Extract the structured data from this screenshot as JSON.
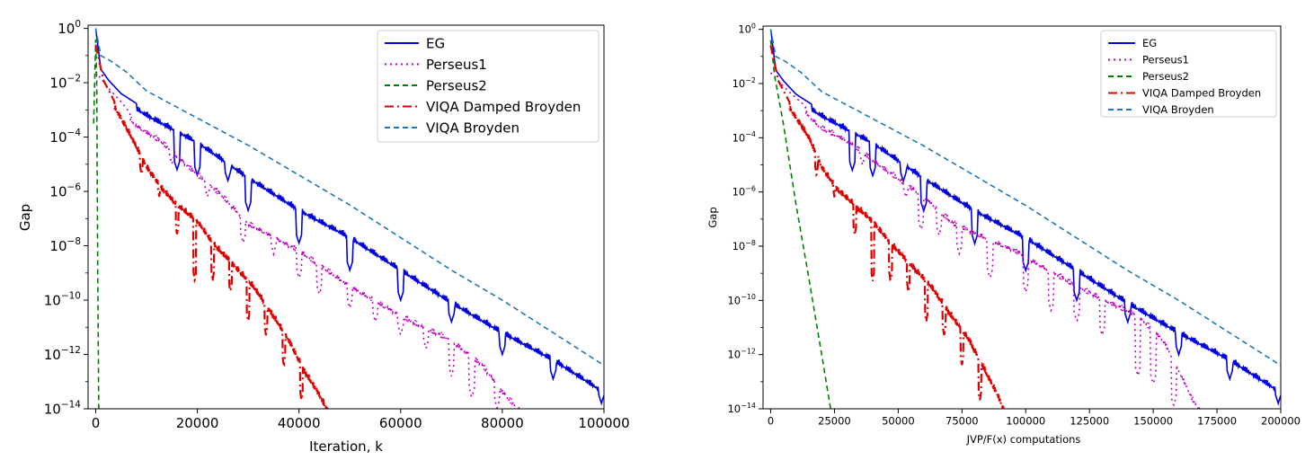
{
  "chart_data": [
    {
      "type": "line",
      "id": "left",
      "xlabel": "Iteration, k",
      "ylabel": "Gap",
      "xlim": [
        -1500,
        100000
      ],
      "ylim_log10": [
        -14,
        0.12
      ],
      "yscale": "log",
      "grid": false,
      "legend_position": "top-right",
      "x_ticks": [
        {
          "value": 0,
          "label": "0"
        },
        {
          "value": 20000,
          "label": "20000"
        },
        {
          "value": 40000,
          "label": "40000"
        },
        {
          "value": 60000,
          "label": "60000"
        },
        {
          "value": 80000,
          "label": "80000"
        },
        {
          "value": 100000,
          "label": "100000"
        }
      ],
      "y_ticks": [
        {
          "exp": 0,
          "base": "10",
          "sup": "0"
        },
        {
          "exp": -2,
          "base": "10",
          "sup": "−2"
        },
        {
          "exp": -4,
          "base": "10",
          "sup": "−4"
        },
        {
          "exp": -6,
          "base": "10",
          "sup": "−6"
        },
        {
          "exp": -8,
          "base": "10",
          "sup": "−8"
        },
        {
          "exp": -10,
          "base": "10",
          "sup": "−10"
        },
        {
          "exp": -12,
          "base": "10",
          "sup": "−12"
        },
        {
          "exp": -14,
          "base": "10",
          "sup": "−14"
        }
      ],
      "series": [
        {
          "name": "EG",
          "color": "#0000dd",
          "dash": "solid",
          "points": [
            [
              0,
              0.0
            ],
            [
              1000,
              -1.5
            ],
            [
              2500,
              -1.9
            ],
            [
              5000,
              -2.4
            ],
            [
              10000,
              -3.0
            ],
            [
              20000,
              -4.0
            ],
            [
              30000,
              -5.3
            ],
            [
              40000,
              -6.5
            ],
            [
              50000,
              -7.5
            ],
            [
              60000,
              -8.7
            ],
            [
              70000,
              -9.9
            ],
            [
              80000,
              -11.0
            ],
            [
              90000,
              -12.0
            ],
            [
              100000,
              -13.2
            ]
          ],
          "spikes": [
            [
              16000,
              -5.2
            ],
            [
              20000,
              -5.4
            ],
            [
              26000,
              -5.6
            ],
            [
              30000,
              -6.7
            ],
            [
              40000,
              -7.9
            ],
            [
              50000,
              -8.9
            ],
            [
              60000,
              -10.0
            ],
            [
              70000,
              -10.8
            ],
            [
              80000,
              -12.0
            ],
            [
              90000,
              -12.9
            ],
            [
              99500,
              -13.8
            ]
          ]
        },
        {
          "name": "Perseus1",
          "color": "#bf00bf",
          "dash": "dotted",
          "points": [
            [
              0,
              -1.6
            ],
            [
              2500,
              -2.2
            ],
            [
              5000,
              -2.7
            ],
            [
              8000,
              -3.4
            ],
            [
              13000,
              -4.0
            ],
            [
              20000,
              -5.2
            ],
            [
              25000,
              -6.0
            ],
            [
              30000,
              -7.0
            ],
            [
              40000,
              -8.0
            ],
            [
              50000,
              -9.3
            ],
            [
              60000,
              -10.4
            ],
            [
              70000,
              -11.3
            ],
            [
              76000,
              -12.2
            ],
            [
              80000,
              -13.2
            ],
            [
              84000,
              -14.0
            ]
          ],
          "spikes": [
            [
              15000,
              -5.0
            ],
            [
              22000,
              -6.2
            ],
            [
              29000,
              -7.9
            ],
            [
              35000,
              -8.3
            ],
            [
              40000,
              -9.2
            ],
            [
              44000,
              -9.8
            ],
            [
              50000,
              -10.3
            ],
            [
              55000,
              -10.8
            ],
            [
              60000,
              -11.3
            ],
            [
              65000,
              -11.8
            ],
            [
              70000,
              -12.8
            ],
            [
              74000,
              -13.6
            ],
            [
              79000,
              -14.0
            ]
          ]
        },
        {
          "name": "Perseus2",
          "color": "#008000",
          "dash": "dashed",
          "points": [
            [
              -400,
              -3.5
            ],
            [
              0,
              -0.4
            ],
            [
              200,
              -2.0
            ],
            [
              400,
              -9.0
            ],
            [
              600,
              -14.0
            ]
          ],
          "spikes": []
        },
        {
          "name": "VIQA Damped Broyden",
          "color": "#dd0000",
          "dash": "dashdot",
          "points": [
            [
              0,
              -0.6
            ],
            [
              1500,
              -1.9
            ],
            [
              4000,
              -2.8
            ],
            [
              7000,
              -3.8
            ],
            [
              10000,
              -4.9
            ],
            [
              13000,
              -5.7
            ],
            [
              16000,
              -6.3
            ],
            [
              20000,
              -6.9
            ],
            [
              23000,
              -7.7
            ],
            [
              27000,
              -8.5
            ],
            [
              31000,
              -9.3
            ],
            [
              35000,
              -10.4
            ],
            [
              38000,
              -11.3
            ],
            [
              41000,
              -12.4
            ],
            [
              44000,
              -13.3
            ],
            [
              46000,
              -14.0
            ]
          ],
          "spikes": [
            [
              9000,
              -5.4
            ],
            [
              12500,
              -6.2
            ],
            [
              16000,
              -7.6
            ],
            [
              19500,
              -9.3
            ],
            [
              23000,
              -9.3
            ],
            [
              26500,
              -9.7
            ],
            [
              30000,
              -10.8
            ],
            [
              33500,
              -11.3
            ],
            [
              37000,
              -12.4
            ],
            [
              40500,
              -13.7
            ]
          ]
        },
        {
          "name": "VIQA Broyden",
          "color": "#1f77b4",
          "dash": "dashed",
          "points": [
            [
              0,
              0.0
            ],
            [
              1000,
              -1.0
            ],
            [
              3000,
              -1.2
            ],
            [
              6000,
              -1.6
            ],
            [
              10000,
              -2.3
            ],
            [
              20000,
              -3.3
            ],
            [
              30000,
              -4.3
            ],
            [
              40000,
              -5.4
            ],
            [
              50000,
              -6.5
            ],
            [
              60000,
              -7.7
            ],
            [
              70000,
              -8.9
            ],
            [
              80000,
              -10.0
            ],
            [
              90000,
              -11.2
            ],
            [
              100000,
              -12.4
            ]
          ],
          "spikes": []
        }
      ]
    },
    {
      "type": "line",
      "id": "right",
      "xlabel": "JVP/F(x) computations",
      "ylabel": "Gap",
      "xlim": [
        -3000,
        200000
      ],
      "ylim_log10": [
        -14,
        0.12
      ],
      "yscale": "log",
      "grid": false,
      "legend_position": "top-right",
      "x_ticks": [
        {
          "value": 0,
          "label": "0"
        },
        {
          "value": 25000,
          "label": "25000"
        },
        {
          "value": 50000,
          "label": "50000"
        },
        {
          "value": 75000,
          "label": "75000"
        },
        {
          "value": 100000,
          "label": "100000"
        },
        {
          "value": 125000,
          "label": "125000"
        },
        {
          "value": 150000,
          "label": "150000"
        },
        {
          "value": 175000,
          "label": "175000"
        },
        {
          "value": 200000,
          "label": "200000"
        }
      ],
      "y_ticks": [
        {
          "exp": 0,
          "base": "10",
          "sup": "0"
        },
        {
          "exp": -2,
          "base": "10",
          "sup": "−2"
        },
        {
          "exp": -4,
          "base": "10",
          "sup": "−4"
        },
        {
          "exp": -6,
          "base": "10",
          "sup": "−6"
        },
        {
          "exp": -8,
          "base": "10",
          "sup": "−8"
        },
        {
          "exp": -10,
          "base": "10",
          "sup": "−10"
        },
        {
          "exp": -12,
          "base": "10",
          "sup": "−12"
        },
        {
          "exp": -14,
          "base": "10",
          "sup": "−14"
        }
      ],
      "series": [
        {
          "name": "EG",
          "color": "#0000dd",
          "dash": "solid",
          "points": [
            [
              0,
              0.0
            ],
            [
              2000,
              -1.5
            ],
            [
              5000,
              -1.9
            ],
            [
              10000,
              -2.4
            ],
            [
              20000,
              -3.0
            ],
            [
              40000,
              -4.0
            ],
            [
              60000,
              -5.3
            ],
            [
              80000,
              -6.5
            ],
            [
              100000,
              -7.5
            ],
            [
              120000,
              -8.7
            ],
            [
              140000,
              -9.9
            ],
            [
              160000,
              -11.0
            ],
            [
              180000,
              -12.0
            ],
            [
              200000,
              -13.2
            ]
          ],
          "spikes": [
            [
              32000,
              -5.2
            ],
            [
              40000,
              -5.4
            ],
            [
              52000,
              -5.6
            ],
            [
              60000,
              -6.7
            ],
            [
              80000,
              -7.9
            ],
            [
              100000,
              -8.9
            ],
            [
              120000,
              -10.0
            ],
            [
              140000,
              -10.8
            ],
            [
              160000,
              -12.0
            ],
            [
              180000,
              -12.9
            ],
            [
              199000,
              -13.8
            ]
          ]
        },
        {
          "name": "Perseus1",
          "color": "#bf00bf",
          "dash": "dotted",
          "points": [
            [
              0,
              -1.6
            ],
            [
              6000,
              -2.2
            ],
            [
              12000,
              -2.7
            ],
            [
              19000,
              -3.4
            ],
            [
              31000,
              -4.0
            ],
            [
              48000,
              -5.2
            ],
            [
              60000,
              -6.0
            ],
            [
              72000,
              -7.0
            ],
            [
              96000,
              -8.0
            ],
            [
              120000,
              -9.3
            ],
            [
              144000,
              -10.4
            ],
            [
              154000,
              -11.3
            ],
            [
              160000,
              -12.4
            ],
            [
              166000,
              -13.6
            ],
            [
              170000,
              -14.0
            ]
          ],
          "spikes": [
            [
              36000,
              -5.0
            ],
            [
              53000,
              -6.2
            ],
            [
              59000,
              -7.4
            ],
            [
              66000,
              -7.6
            ],
            [
              74000,
              -8.3
            ],
            [
              86000,
              -9.2
            ],
            [
              100000,
              -9.7
            ],
            [
              110000,
              -10.4
            ],
            [
              120000,
              -10.8
            ],
            [
              130000,
              -11.3
            ],
            [
              144000,
              -12.8
            ],
            [
              150000,
              -13.1
            ],
            [
              158000,
              -13.9
            ]
          ]
        },
        {
          "name": "Perseus2",
          "color": "#008000",
          "dash": "dashed",
          "points": [
            [
              0,
              -0.4
            ],
            [
              1500,
              -1.7
            ],
            [
              5000,
              -3.5
            ],
            [
              10000,
              -6.5
            ],
            [
              15000,
              -9.2
            ],
            [
              20000,
              -12.0
            ],
            [
              23500,
              -14.0
            ]
          ],
          "spikes": []
        },
        {
          "name": "VIQA Damped Broyden",
          "color": "#dd0000",
          "dash": "dashdot",
          "points": [
            [
              0,
              -0.6
            ],
            [
              3000,
              -1.9
            ],
            [
              8000,
              -2.8
            ],
            [
              15000,
              -3.8
            ],
            [
              20000,
              -4.9
            ],
            [
              26000,
              -5.7
            ],
            [
              33000,
              -6.3
            ],
            [
              40000,
              -6.9
            ],
            [
              47000,
              -7.7
            ],
            [
              55000,
              -8.5
            ],
            [
              63000,
              -9.3
            ],
            [
              71000,
              -10.4
            ],
            [
              78000,
              -11.3
            ],
            [
              84000,
              -12.4
            ],
            [
              89000,
              -13.3
            ],
            [
              92000,
              -14.0
            ]
          ],
          "spikes": [
            [
              18000,
              -5.4
            ],
            [
              25000,
              -6.2
            ],
            [
              33000,
              -7.6
            ],
            [
              40000,
              -9.3
            ],
            [
              47000,
              -9.3
            ],
            [
              54000,
              -9.7
            ],
            [
              61000,
              -10.8
            ],
            [
              68000,
              -11.3
            ],
            [
              75000,
              -12.4
            ],
            [
              82000,
              -13.7
            ]
          ]
        },
        {
          "name": "VIQA Broyden",
          "color": "#1f77b4",
          "dash": "dashed",
          "points": [
            [
              0,
              0.0
            ],
            [
              2000,
              -1.0
            ],
            [
              6000,
              -1.2
            ],
            [
              12000,
              -1.6
            ],
            [
              20000,
              -2.3
            ],
            [
              40000,
              -3.3
            ],
            [
              60000,
              -4.3
            ],
            [
              80000,
              -5.4
            ],
            [
              100000,
              -6.5
            ],
            [
              120000,
              -7.7
            ],
            [
              140000,
              -8.9
            ],
            [
              160000,
              -10.0
            ],
            [
              180000,
              -11.2
            ],
            [
              200000,
              -12.4
            ]
          ],
          "spikes": []
        }
      ]
    }
  ]
}
